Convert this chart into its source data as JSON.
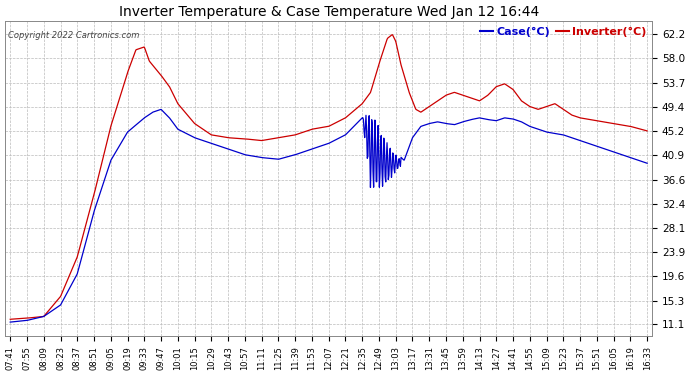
{
  "title": "Inverter Temperature & Case Temperature Wed Jan 12 16:44",
  "copyright": "Copyright 2022 Cartronics.com",
  "legend_case": "Case(°C)",
  "legend_inverter": "Inverter(°C)",
  "yticks": [
    11.1,
    15.3,
    19.6,
    23.9,
    28.1,
    32.4,
    36.6,
    40.9,
    45.2,
    49.4,
    53.7,
    58.0,
    62.2
  ],
  "ymin": 9.0,
  "ymax": 64.5,
  "background_color": "#ffffff",
  "grid_color": "#bbbbbb",
  "case_color": "#0000cc",
  "inverter_color": "#cc0000",
  "xtick_labels": [
    "07:41",
    "07:55",
    "08:09",
    "08:23",
    "08:37",
    "08:51",
    "09:05",
    "09:19",
    "09:33",
    "09:47",
    "10:01",
    "10:15",
    "10:29",
    "10:43",
    "10:57",
    "11:11",
    "11:25",
    "11:39",
    "11:53",
    "12:07",
    "12:21",
    "12:35",
    "12:49",
    "13:03",
    "13:17",
    "13:31",
    "13:45",
    "13:59",
    "14:13",
    "14:27",
    "14:41",
    "14:55",
    "15:09",
    "15:23",
    "15:37",
    "15:51",
    "16:05",
    "16:19",
    "16:33"
  ]
}
